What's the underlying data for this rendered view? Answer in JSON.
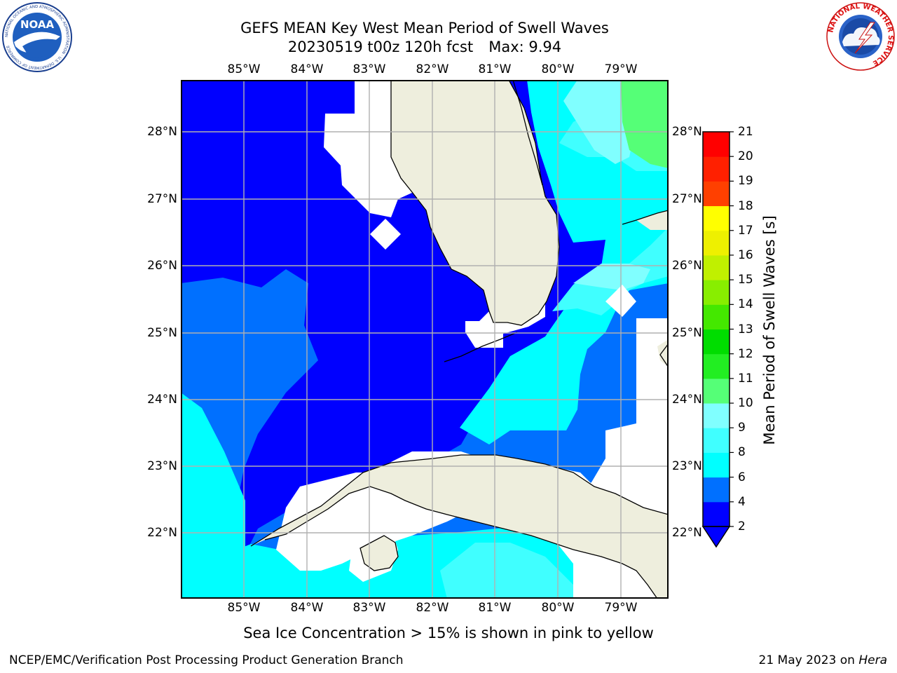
{
  "title": {
    "line1": "GEFS MEAN Key West Mean Period of Swell Waves",
    "run": "20230519 t00z 120h fcst",
    "max": "Max: 9.94"
  },
  "axes": {
    "lon_ticks": [
      "85°W",
      "84°W",
      "83°W",
      "82°W",
      "81°W",
      "80°W",
      "79°W"
    ],
    "lat_ticks": [
      "28°N",
      "27°N",
      "26°N",
      "25°N",
      "24°N",
      "23°N",
      "22°N"
    ]
  },
  "colorbar": {
    "label": "Mean Period of Swell Waves [s]",
    "ticks": [
      "21",
      "20",
      "19",
      "18",
      "17",
      "16",
      "15",
      "14",
      "13",
      "12",
      "11",
      "10",
      "9",
      "8",
      "6",
      "4",
      "2"
    ],
    "colors": [
      "#0000ff",
      "#0070ff",
      "#00ffff",
      "#40ffff",
      "#80ffff",
      "#55ff77",
      "#22ee22",
      "#00dd00",
      "#44e800",
      "#88ee00",
      "#c0f000",
      "#eef000",
      "#ffff00",
      "#ffe000",
      "#ffc000",
      "#ffa000",
      "#ff8000",
      "#ff6000",
      "#ff4000",
      "#ff2000",
      "#ff0000"
    ]
  },
  "map_colors": {
    "ocean_deep": "#0000ff",
    "ocean_mid": "#0070ff",
    "ocean_cyan": "#00ffff",
    "ocean_light": "#40ffff",
    "ocean_pale": "#80ffff",
    "ocean_green": "#55ff77",
    "land": "#eeeedd",
    "nodata": "#ffffff",
    "grid": "#b0b0b0"
  },
  "footer": {
    "note": "Sea Ice Concentration > 15% is shown in pink to yellow",
    "credit": "NCEP/EMC/Verification Post Processing Product Generation Branch",
    "date": "21 May 2023 on",
    "system": "Hera"
  },
  "logos": {
    "noaa_text": "NOAA",
    "noaa_ring": "NATIONAL OCEANIC AND ATMOSPHERIC ADMINISTRATION · U.S. DEPARTMENT OF COMMERCE",
    "nws_ring": "NATIONAL WEATHER SERVICE"
  }
}
